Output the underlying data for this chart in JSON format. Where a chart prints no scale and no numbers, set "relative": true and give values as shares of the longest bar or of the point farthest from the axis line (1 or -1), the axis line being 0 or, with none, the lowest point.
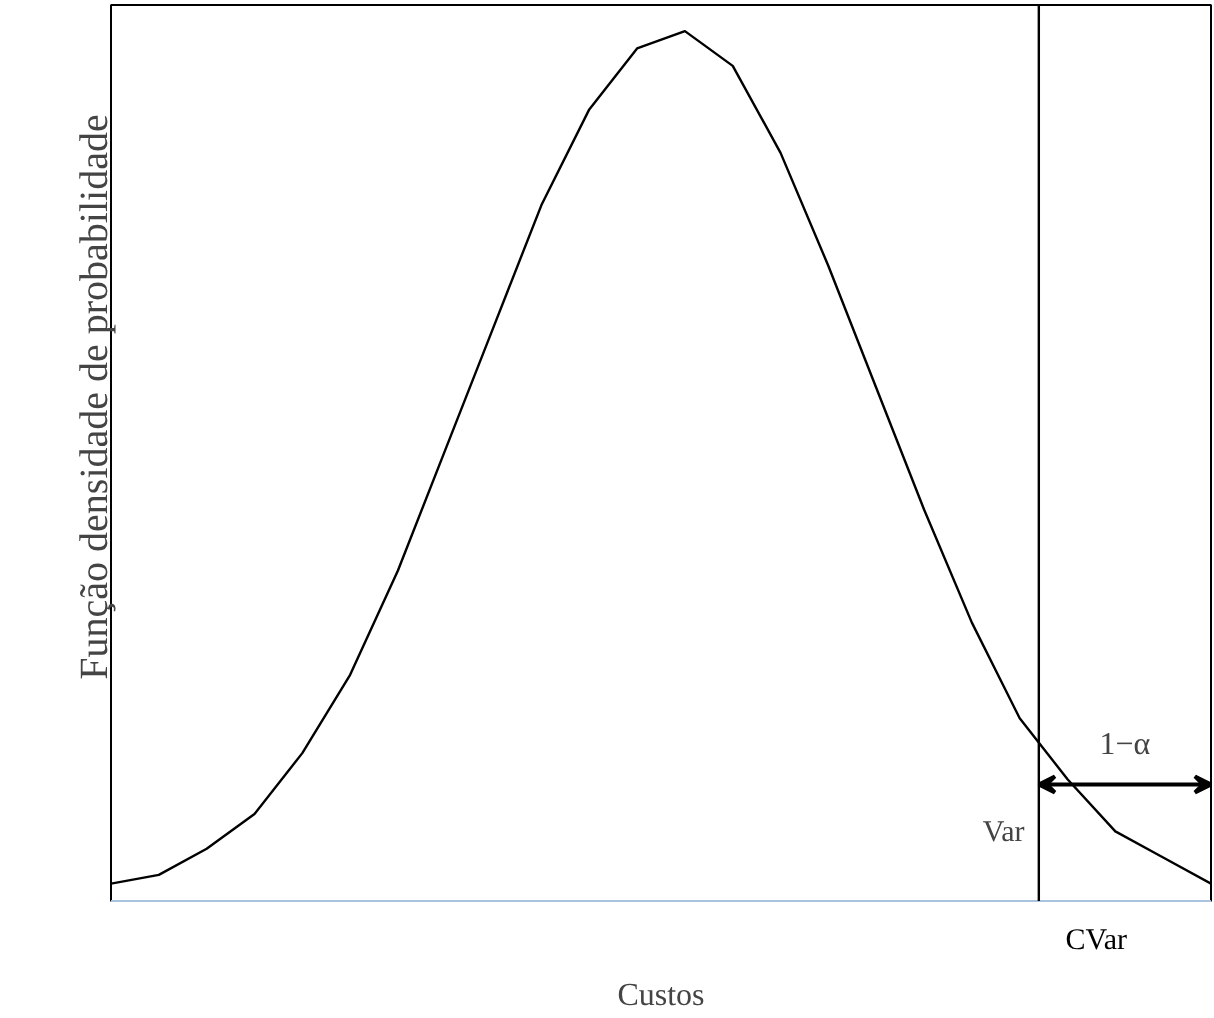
{
  "chart_data": {
    "type": "line",
    "relative": true,
    "xlabel": "Custos",
    "ylabel": "Função densidade de probabilidade",
    "categories": [
      null,
      null,
      null,
      null,
      null,
      null,
      null,
      null,
      null,
      null,
      null,
      null,
      null,
      null,
      null,
      null,
      null,
      null,
      null,
      null,
      null,
      null,
      null,
      null
    ],
    "series": [
      {
        "color": "#000000",
        "values": [
          0.02,
          0.03,
          0.06,
          0.1,
          0.17,
          0.26,
          0.38,
          0.52,
          0.66,
          0.8,
          0.91,
          0.98,
          1.0,
          0.96,
          0.86,
          0.73,
          0.59,
          0.45,
          0.32,
          0.21,
          0.14,
          0.08,
          0.05,
          0.02
        ]
      }
    ],
    "annotations": [
      "Var",
      "1−α",
      "CVar"
    ]
  }
}
